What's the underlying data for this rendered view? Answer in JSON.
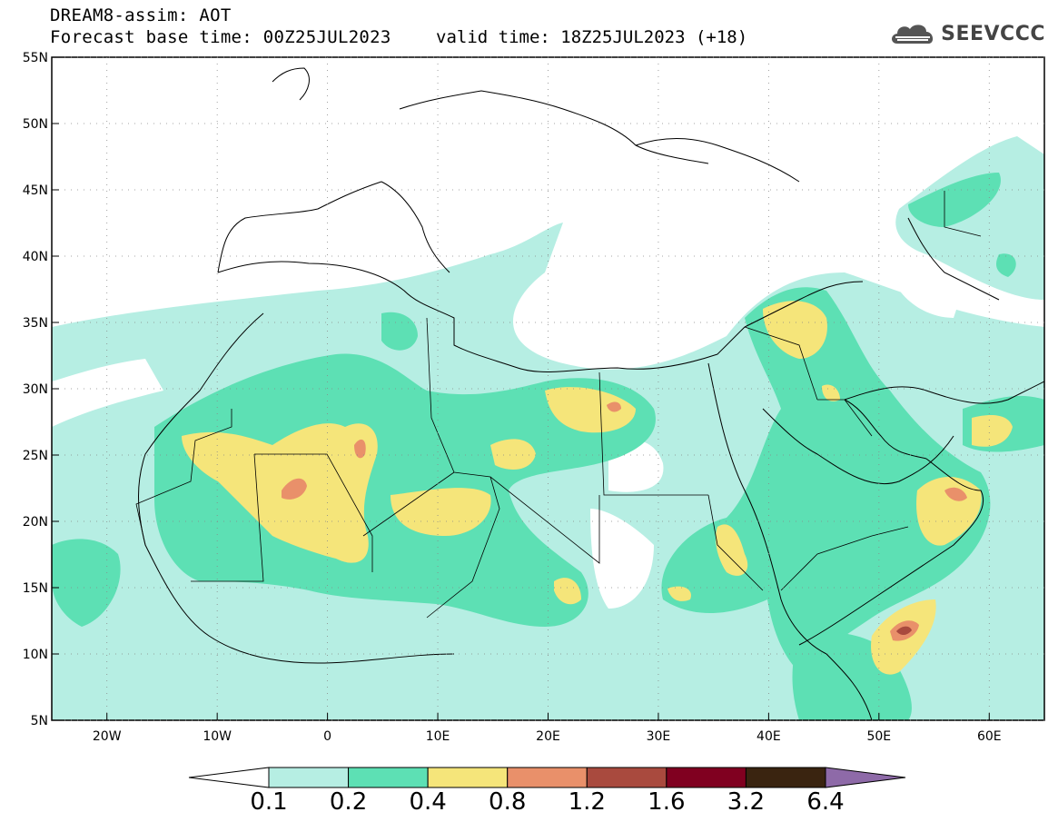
{
  "title": {
    "line1": "DREAM8-assim: AOT",
    "line2": "Forecast base time: 00Z25JUL2023",
    "valid": "valid time: 18Z25JUL2023 (+18)"
  },
  "logo": {
    "text": "SEEVCCC",
    "icon": "cloud-icon"
  },
  "map": {
    "lon_range": [
      -25,
      65
    ],
    "lat_range": [
      5,
      55
    ],
    "lon_ticks": [
      {
        "v": -20,
        "label": "20W"
      },
      {
        "v": -10,
        "label": "10W"
      },
      {
        "v": 0,
        "label": "0"
      },
      {
        "v": 10,
        "label": "10E"
      },
      {
        "v": 20,
        "label": "20E"
      },
      {
        "v": 30,
        "label": "30E"
      },
      {
        "v": 40,
        "label": "40E"
      },
      {
        "v": 50,
        "label": "50E"
      },
      {
        "v": 60,
        "label": "60E"
      }
    ],
    "lat_ticks": [
      {
        "v": 5,
        "label": "5N"
      },
      {
        "v": 10,
        "label": "10N"
      },
      {
        "v": 15,
        "label": "15N"
      },
      {
        "v": 20,
        "label": "20N"
      },
      {
        "v": 25,
        "label": "25N"
      },
      {
        "v": 30,
        "label": "30N"
      },
      {
        "v": 35,
        "label": "35N"
      },
      {
        "v": 40,
        "label": "40N"
      },
      {
        "v": 45,
        "label": "45N"
      },
      {
        "v": 50,
        "label": "50N"
      },
      {
        "v": 55,
        "label": "55N"
      }
    ],
    "grid": "dotted"
  },
  "colorbar": {
    "levels": [
      "0.1",
      "0.2",
      "0.4",
      "0.8",
      "1.2",
      "1.6",
      "3.2",
      "6.4"
    ],
    "colors": [
      "#ffffff",
      "#b6eee3",
      "#5de0b4",
      "#f5e57a",
      "#e9906a",
      "#a94a3e",
      "#800020",
      "#3a2410",
      "#8e6aa8"
    ]
  }
}
